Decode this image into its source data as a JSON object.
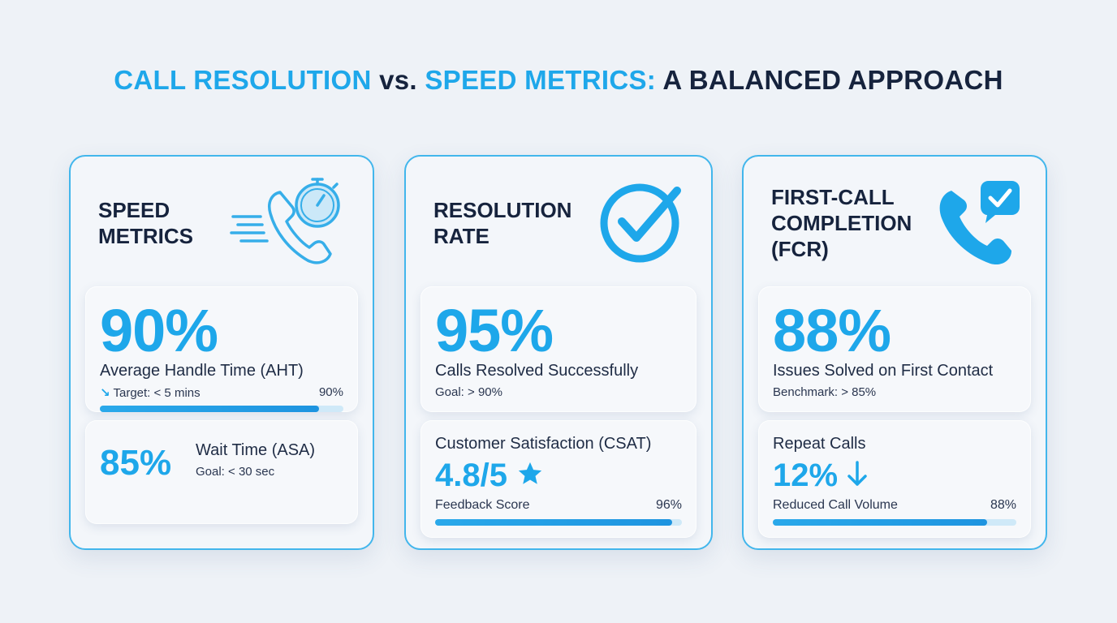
{
  "title": {
    "part1": "CALL RESOLUTION",
    "part2": " vs. ",
    "part3": "SPEED METRICS:",
    "part4": " A BALANCED APPROACH"
  },
  "colors": {
    "accent": "#1ea7ea",
    "dark": "#16233d",
    "border": "#42b6ec",
    "track": "#cfe9f8"
  },
  "cards": [
    {
      "title": "SPEED\nMETRICS",
      "icon": "phone-stopwatch-icon",
      "top": {
        "value": "90%",
        "label": "Average Handle Time (AHT)",
        "sub_icon": "arrow-down-right-icon",
        "sub": "Target: < 5 mins",
        "progress_label": "90%",
        "progress": 0.9
      },
      "bottom": {
        "value": "85%",
        "label": "Wait Time (ASA)",
        "sub": "Goal: < 30 sec"
      }
    },
    {
      "title": "RESOLUTION\nRATE",
      "icon": "check-circle-icon",
      "top": {
        "value": "95%",
        "label": "Calls Resolved Successfully",
        "sub": "Goal: > 90%"
      },
      "bottom": {
        "label": "Customer Satisfaction (CSAT)",
        "value": "4.8/5",
        "value_icon": "star-icon",
        "sub": "Feedback Score",
        "progress_label": "96%",
        "progress": 0.96
      }
    },
    {
      "title": "FIRST-CALL\nCOMPLETION\n(FCR)",
      "icon": "phone-check-bubble-icon",
      "top": {
        "value": "88%",
        "label": "Issues Solved on First Contact",
        "sub": "Benchmark: > 85%"
      },
      "bottom": {
        "label": "Repeat Calls",
        "value": "12%",
        "value_icon": "arrow-down-icon",
        "sub": "Reduced Call Volume",
        "progress_label": "88%",
        "progress": 0.88
      }
    }
  ]
}
